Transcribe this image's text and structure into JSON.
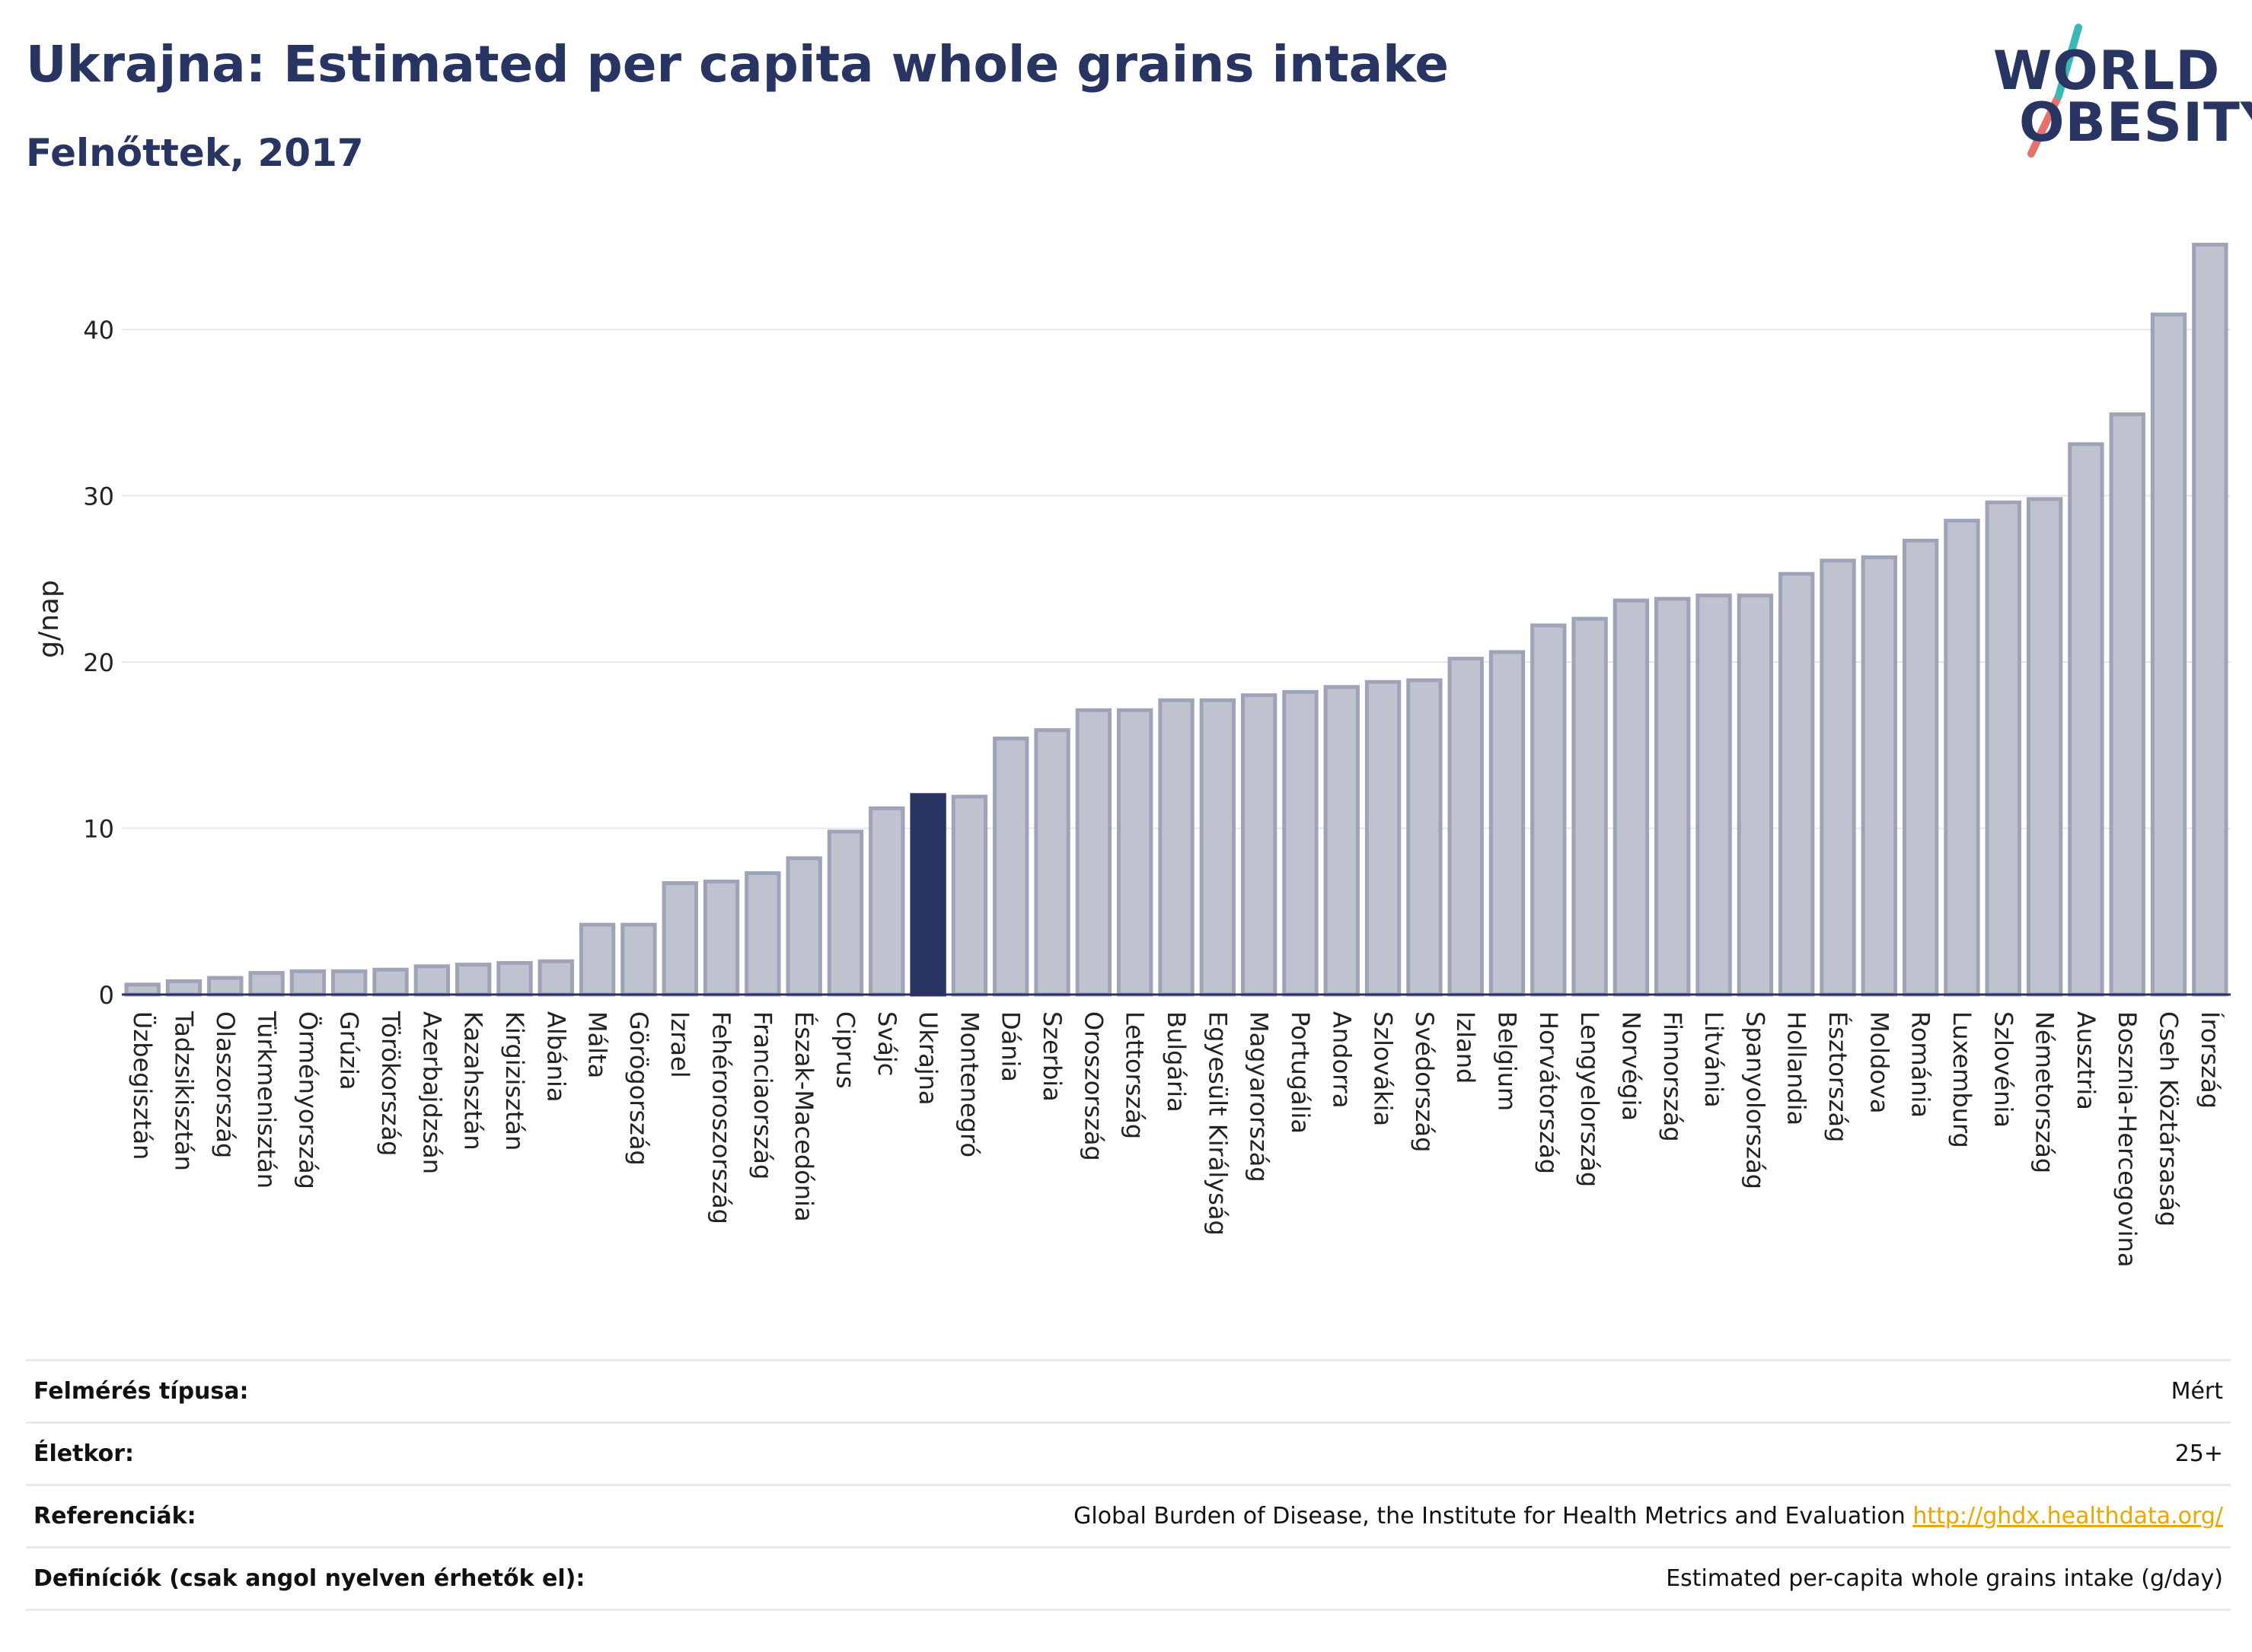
{
  "header": {
    "title": "Ukrajna: Estimated per capita whole grains intake",
    "subtitle": "Felnőttek, 2017"
  },
  "logo": {
    "line1": "WORLD",
    "line2": "OBESITY"
  },
  "colors": {
    "brand": "#283562",
    "bar_default": "#bfc3d0",
    "bar_border": "#9ea3b8",
    "bar_highlight": "#283562",
    "slash_red": "#e8706a",
    "slash_teal": "#3ab8b6",
    "link": "#e8a800"
  },
  "chart_data": {
    "type": "bar",
    "ylabel": "g/nap",
    "ylim": [
      0,
      47
    ],
    "yticks": [
      0,
      10,
      20,
      30,
      40
    ],
    "grid": true,
    "highlight": "Ukrajna",
    "categories": [
      "Üzbegisztán",
      "Tadzsikisztán",
      "Olaszország",
      "Türkmenisztán",
      "Örményország",
      "Grúzia",
      "Törökország",
      "Azerbajdzsán",
      "Kazahsztán",
      "Kirgizisztán",
      "Albánia",
      "Málta",
      "Görögország",
      "Izrael",
      "Fehéroroszország",
      "Franciaország",
      "Észak-Macedónia",
      "Ciprus",
      "Svájc",
      "Ukrajna",
      "Montenegró",
      "Dánia",
      "Szerbia",
      "Oroszország",
      "Lettország",
      "Bulgária",
      "Egyesült Királyság",
      "Magyarország",
      "Portugália",
      "Andorra",
      "Szlovákia",
      "Svédország",
      "Izland",
      "Belgium",
      "Horvátország",
      "Lengyelország",
      "Norvégia",
      "Finnország",
      "Litvánia",
      "Spanyolország",
      "Hollandia",
      "Észtország",
      "Moldova",
      "Románia",
      "Luxemburg",
      "Szlovénia",
      "Németország",
      "Ausztria",
      "Bosznia-Hercegovina",
      "Cseh Köztársaság",
      "Írország"
    ],
    "values": [
      0.6,
      0.8,
      1.0,
      1.3,
      1.4,
      1.4,
      1.5,
      1.7,
      1.8,
      1.9,
      2.0,
      4.2,
      4.2,
      6.7,
      6.8,
      7.3,
      8.2,
      9.8,
      11.2,
      12.0,
      11.9,
      15.4,
      15.9,
      17.1,
      17.1,
      17.7,
      17.7,
      18.0,
      18.2,
      18.5,
      18.8,
      18.9,
      20.2,
      20.6,
      22.2,
      22.6,
      23.7,
      23.8,
      24.0,
      24.0,
      25.3,
      26.1,
      26.3,
      27.3,
      28.5,
      29.6,
      29.8,
      33.1,
      34.9,
      40.9,
      45.1
    ]
  },
  "info": {
    "rows": [
      {
        "label": "Felmérés típusa:",
        "value": "Mért"
      },
      {
        "label": "Életkor:",
        "value": "25+"
      },
      {
        "label": "Referenciák:",
        "value": "Global Burden of Disease, the Institute for Health Metrics and Evaluation",
        "link": "http://ghdx.healthdata.org/"
      },
      {
        "label": "Definíciók (csak angol nyelven érhetők el):",
        "value": "Estimated per-capita whole grains intake (g/day)"
      }
    ]
  }
}
